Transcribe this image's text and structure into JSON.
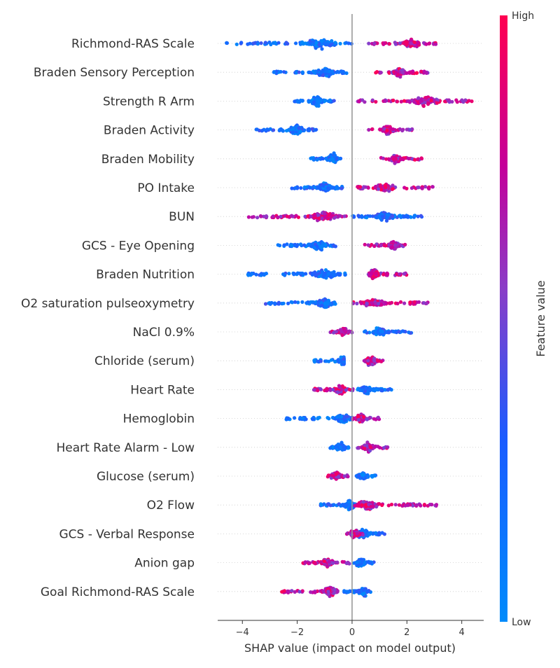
{
  "chart_data": {
    "type": "scatter",
    "subtype": "shap-beeswarm",
    "xlabel": "SHAP value (impact on model output)",
    "xlim": [
      -4.9,
      4.8
    ],
    "xticks": [
      -4,
      -2,
      0,
      2,
      4
    ],
    "xtick_labels": [
      "−4",
      "−2",
      "0",
      "2",
      "4"
    ],
    "grid": false,
    "colorbar": {
      "label": "Feature value",
      "high_label": "High",
      "low_label": "Low",
      "low_color": "#008bfb",
      "high_color": "#ff0051"
    },
    "features": [
      {
        "name": "Richmond-RAS Scale",
        "low_range": [
          -4.6,
          0.0
        ],
        "high_range": [
          0.6,
          3.2
        ],
        "dense_low": -1.2,
        "dense_high": 2.2
      },
      {
        "name": "Braden Sensory Perception",
        "low_range": [
          -2.9,
          0.0
        ],
        "high_range": [
          0.8,
          2.8
        ],
        "dense_low": -1.0,
        "dense_high": 1.7
      },
      {
        "name": "Strength R Arm",
        "low_range": [
          -2.1,
          -0.6
        ],
        "high_range": [
          0.2,
          4.4
        ],
        "dense_low": -1.3,
        "dense_high": 2.7
      },
      {
        "name": "Braden Activity",
        "low_range": [
          -3.5,
          -1.2
        ],
        "high_range": [
          0.6,
          2.2
        ],
        "dense_low": -2.0,
        "dense_high": 1.3
      },
      {
        "name": "Braden Mobility",
        "low_range": [
          -1.6,
          -0.3
        ],
        "high_range": [
          1.0,
          2.6
        ],
        "dense_low": -0.7,
        "dense_high": 1.6
      },
      {
        "name": "PO Intake",
        "low_range": [
          -2.2,
          -0.3
        ],
        "high_range": [
          0.2,
          3.0
        ],
        "dense_low": -1.0,
        "dense_high": 1.2
      },
      {
        "name": "BUN",
        "low_range": [
          0.0,
          2.6
        ],
        "high_range": [
          -3.8,
          -0.2
        ],
        "dense_low": 1.2,
        "dense_high": -1.0
      },
      {
        "name": "GCS - Eye Opening",
        "low_range": [
          -2.7,
          -0.6
        ],
        "high_range": [
          0.4,
          2.0
        ],
        "dense_low": -1.2,
        "dense_high": 1.5
      },
      {
        "name": "Braden Nutrition",
        "low_range": [
          -3.8,
          -0.2
        ],
        "high_range": [
          0.6,
          2.0
        ],
        "dense_low": -1.0,
        "dense_high": 0.8
      },
      {
        "name": "O2 saturation pulseoxymetry",
        "low_range": [
          -3.2,
          -0.6
        ],
        "high_range": [
          0.0,
          2.8
        ],
        "dense_low": -1.0,
        "dense_high": 0.8
      },
      {
        "name": "NaCl 0.9%",
        "low_range": [
          0.4,
          2.2
        ],
        "high_range": [
          -0.8,
          0.0
        ],
        "dense_low": 1.0,
        "dense_high": -0.3
      },
      {
        "name": "Chloride (serum)",
        "low_range": [
          -1.4,
          -0.3
        ],
        "high_range": [
          0.4,
          1.2
        ],
        "dense_low": -0.3,
        "dense_high": 0.7
      },
      {
        "name": "Heart Rate",
        "low_range": [
          0.2,
          1.5
        ],
        "high_range": [
          -1.4,
          0.1
        ],
        "dense_low": 0.5,
        "dense_high": -0.4
      },
      {
        "name": "Hemoglobin",
        "low_range": [
          -2.4,
          0.0
        ],
        "high_range": [
          0.0,
          1.0
        ],
        "dense_low": -0.3,
        "dense_high": 0.3
      },
      {
        "name": "Heart Rate Alarm - Low",
        "low_range": [
          -0.9,
          -0.1
        ],
        "high_range": [
          0.2,
          1.3
        ],
        "dense_low": -0.4,
        "dense_high": 0.6
      },
      {
        "name": "Glucose (serum)",
        "low_range": [
          0.1,
          0.9
        ],
        "high_range": [
          -0.9,
          -0.1
        ],
        "dense_low": 0.4,
        "dense_high": -0.6
      },
      {
        "name": "O2 Flow",
        "low_range": [
          -1.2,
          0.2
        ],
        "high_range": [
          0.1,
          3.1
        ],
        "dense_low": -0.1,
        "dense_high": 0.6
      },
      {
        "name": "GCS - Verbal Response",
        "low_range": [
          0.2,
          1.2
        ],
        "high_range": [
          -0.2,
          0.4
        ],
        "dense_low": 0.4,
        "dense_high": 0.1
      },
      {
        "name": "Anion gap",
        "low_range": [
          0.0,
          0.8
        ],
        "high_range": [
          -1.8,
          -0.1
        ],
        "dense_low": 0.3,
        "dense_high": -0.9
      },
      {
        "name": "Goal Richmond-RAS Scale",
        "low_range": [
          -0.3,
          0.7
        ],
        "high_range": [
          -2.6,
          -0.5
        ],
        "dense_low": 0.4,
        "dense_high": -0.8
      }
    ]
  }
}
